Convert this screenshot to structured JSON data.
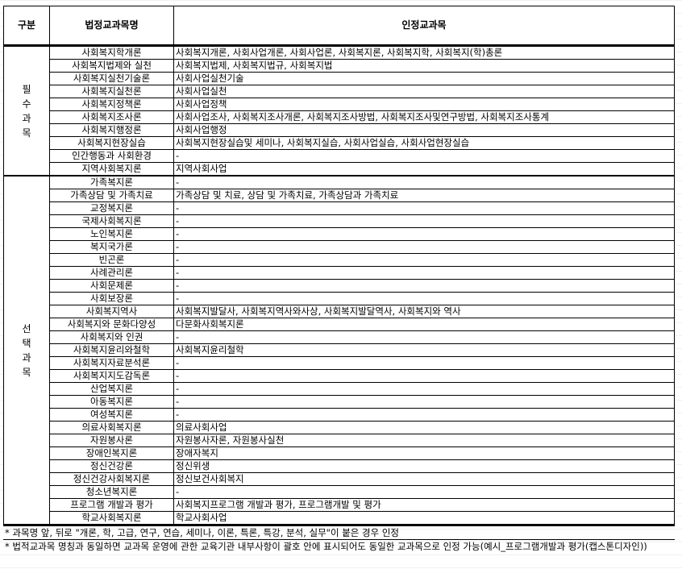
{
  "header": {
    "category": "구분",
    "legal_subject": "법정교과목명",
    "recognized": "인정교과목"
  },
  "groups": [
    {
      "label": "필수과목",
      "rows": [
        [
          "사회복지학개론",
          "사회복지개론, 사회사업개론, 사회사업론, 사회복지론, 사회복지학, 사회복지(학)총론"
        ],
        [
          "사회복지법제와 실천",
          "사회복지법제, 사회복지법규, 사회복지법"
        ],
        [
          "사회복지실천기술론",
          "사회사업실천기술"
        ],
        [
          "사회복지실천론",
          "사회사업실천"
        ],
        [
          "사회복지정책론",
          "사회사업정책"
        ],
        [
          "사회복지조사론",
          "사회사업조사, 사회복지조사개론, 사회복지조사방법,  사회복지조사및연구방법, 사회복지조사통계"
        ],
        [
          "사회복지행정론",
          "사회사업행정"
        ],
        [
          "사회복지현장실습",
          "사회복지현장실습및 세미나, 사회복지실습, 사회사업실습, 사회사업현장실습"
        ],
        [
          "인간행동과 사회환경",
          "-"
        ],
        [
          "지역사회복지론",
          "지역사회사업"
        ]
      ]
    },
    {
      "label": "선택과목",
      "rows": [
        [
          "가족복지론",
          "-"
        ],
        [
          "가족상담 및 가족치료",
          "가족상담 및 치료, 상담 및 가족치료, 가족상담과 가족치료"
        ],
        [
          "교정복지론",
          "-"
        ],
        [
          "국제사회복지론",
          "-"
        ],
        [
          "노인복지론",
          "-"
        ],
        [
          "복지국가론",
          "-"
        ],
        [
          "빈곤론",
          "-"
        ],
        [
          "사례관리론",
          "-"
        ],
        [
          "사회문제론",
          "-"
        ],
        [
          "사회보장론",
          "-"
        ],
        [
          "사회복지역사",
          "사회복지발달사, 사회복지역사와사상, 사회복지발달역사, 사회복지와 역사"
        ],
        [
          "사회복지와 문화다양성",
          "다문화사회복지론"
        ],
        [
          "사회복지와 인권",
          "-"
        ],
        [
          "사회복지윤리와철학",
          "사회복지윤리철학"
        ],
        [
          "사회복지자료분석론",
          "-"
        ],
        [
          "사회복지지도감독론",
          "-"
        ],
        [
          "산업복지론",
          "-"
        ],
        [
          "아동복지론",
          "-"
        ],
        [
          "여성복지론",
          "-"
        ],
        [
          "의료사회복지론",
          "의료사회사업"
        ],
        [
          "자원봉사론",
          "자원봉사자론, 자원봉사실천"
        ],
        [
          "장애인복지론",
          "장애자복지"
        ],
        [
          "정신건강론",
          "정신위생"
        ],
        [
          "정신건강사회복지론",
          "정신보건사회복지"
        ],
        [
          "청소년복지론",
          "-"
        ],
        [
          "프로그램 개발과 평가",
          "사회복지프로그램 개발과 평가, 프로그램개발 및 평가"
        ],
        [
          "학교사회복지론",
          "학교사회사업"
        ]
      ]
    }
  ],
  "notes": [
    "* 과목명 앞, 뒤로 \"개론, 학, 고급, 연구, 연습, 세미나, 이론, 특론, 특강, 분석, 실무\"이 붙은 경우 인정",
    "* 법적교과목 명칭과 동일하면 교과목 운영에 관한 교육기관 내부사항이 괄호 안에 표시되어도 동일한 교과목으로 인정 가능(예시_프로그램개발과 평가(캡스톤디자인))"
  ]
}
